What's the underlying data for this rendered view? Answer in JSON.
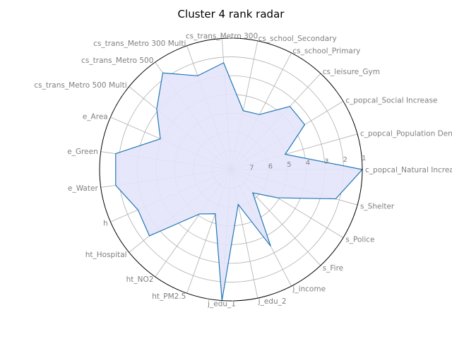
{
  "chart_data": {
    "type": "radar",
    "title": "Cluster 4 rank radar",
    "categories": [
      "c_popcal_Natural Increase",
      "c_popcal_Population Density",
      "c_popcal_Social Increase",
      "cs_leisure_Gym",
      "cs_school_Primary",
      "cs_school_Secondary",
      "cs_trans_Metro 300",
      "cs_trans_Metro 300 Multi",
      "cs_trans_Metro 500",
      "cs_trans_Metro 500 Multi",
      "e_Area",
      "e_Green",
      "e_Water",
      "h",
      "ht_Hospital",
      "ht_NO2",
      "ht_PM2.5",
      "j_edu_1",
      "j_edu_2",
      "j_income",
      "s_Fire",
      "s_Police",
      "s_Shelter"
    ],
    "series": [
      {
        "values": [
          1,
          5,
          3.4,
          3.4,
          4.7,
          4.8,
          2.3,
          2.7,
          1.7,
          2.9,
          3.9,
          1.8,
          1.8,
          2.6,
          2.4,
          5.1,
          5.5,
          1.0,
          6.1,
          3.4,
          6.3,
          5.1,
          2.2
        ]
      }
    ],
    "radial_ticks": [
      "7",
      "6",
      "5",
      "4",
      "3",
      "2",
      "1"
    ],
    "rmin": 8,
    "rmax": 1,
    "grid": true,
    "colors": {
      "line": "#1f77b4",
      "fill": "#e4e4fc",
      "grid": "#b0b0b0",
      "frame": "#000000",
      "label": "#808080"
    }
  }
}
